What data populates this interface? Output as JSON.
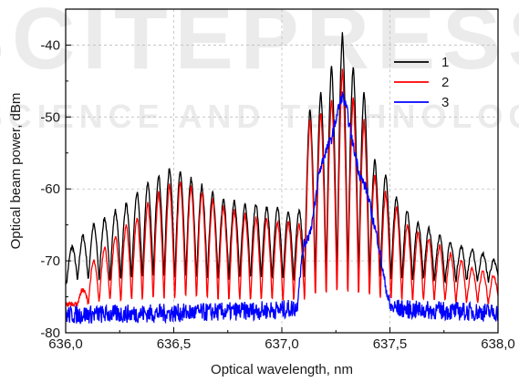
{
  "chart_data": {
    "type": "line",
    "xlabel": "Optical wavelength, nm",
    "ylabel": "Optical beam power, dBm",
    "xlim": [
      636.0,
      638.0
    ],
    "ylim": [
      -80,
      -35
    ],
    "xticks": [
      636.0,
      636.5,
      637.0,
      637.5,
      638.0
    ],
    "xtick_labels": [
      "636,0",
      "636,5",
      "637,0",
      "637,5",
      "638,0"
    ],
    "yticks": [
      -80,
      -70,
      -60,
      -50,
      -40
    ],
    "ytick_labels": [
      "-80",
      "-70",
      "-60",
      "-50",
      "-40"
    ],
    "grid": "dashed",
    "legend_position": "top-right",
    "fringe_period_nm": 0.05,
    "series": [
      {
        "name": "1",
        "color": "#000000",
        "peaks": [
          [
            636.03,
            -68
          ],
          [
            636.08,
            -66.5
          ],
          [
            636.13,
            -65
          ],
          [
            636.18,
            -64
          ],
          [
            636.23,
            -63
          ],
          [
            636.28,
            -62
          ],
          [
            636.33,
            -60.5
          ],
          [
            636.38,
            -59
          ],
          [
            636.43,
            -58
          ],
          [
            636.48,
            -57
          ],
          [
            636.53,
            -57.5
          ],
          [
            636.58,
            -58.5
          ],
          [
            636.63,
            -59.5
          ],
          [
            636.68,
            -60.5
          ],
          [
            636.73,
            -61.5
          ],
          [
            636.78,
            -61.5
          ],
          [
            636.83,
            -62
          ],
          [
            636.88,
            -62
          ],
          [
            636.93,
            -62.5
          ],
          [
            636.98,
            -62.5
          ],
          [
            637.03,
            -63
          ],
          [
            637.08,
            -63
          ],
          [
            637.13,
            -49
          ],
          [
            637.18,
            -46.5
          ],
          [
            637.23,
            -43
          ],
          [
            637.28,
            -38.5
          ],
          [
            637.33,
            -43
          ],
          [
            637.38,
            -46.5
          ],
          [
            637.43,
            -56
          ],
          [
            637.48,
            -58
          ],
          [
            637.53,
            -61
          ],
          [
            637.58,
            -63
          ],
          [
            637.63,
            -64.5
          ],
          [
            637.68,
            -65.5
          ],
          [
            637.73,
            -66.5
          ],
          [
            637.78,
            -67.5
          ],
          [
            637.83,
            -68
          ],
          [
            637.88,
            -68.5
          ],
          [
            637.93,
            -69
          ],
          [
            637.98,
            -70
          ]
        ],
        "floor": -73
      },
      {
        "name": "2",
        "color": "#ff0000",
        "peaks": [
          [
            636.08,
            -74
          ],
          [
            636.13,
            -70
          ],
          [
            636.18,
            -68
          ],
          [
            636.23,
            -66.5
          ],
          [
            636.28,
            -65
          ],
          [
            636.33,
            -64
          ],
          [
            636.38,
            -62
          ],
          [
            636.43,
            -60.5
          ],
          [
            636.48,
            -59.5
          ],
          [
            636.53,
            -59
          ],
          [
            636.58,
            -59.5
          ],
          [
            636.63,
            -60.5
          ],
          [
            636.68,
            -61.5
          ],
          [
            636.73,
            -62.5
          ],
          [
            636.78,
            -63
          ],
          [
            636.83,
            -63.5
          ],
          [
            636.88,
            -64
          ],
          [
            636.93,
            -64
          ],
          [
            636.98,
            -64.5
          ],
          [
            637.03,
            -64.5
          ],
          [
            637.08,
            -65
          ],
          [
            637.13,
            -50.5
          ],
          [
            637.18,
            -49.5
          ],
          [
            637.23,
            -47.5
          ],
          [
            637.28,
            -43.5
          ],
          [
            637.33,
            -47.5
          ],
          [
            637.38,
            -50.5
          ],
          [
            637.43,
            -58
          ],
          [
            637.48,
            -60.5
          ],
          [
            637.53,
            -62.5
          ],
          [
            637.58,
            -65
          ],
          [
            637.63,
            -66
          ],
          [
            637.68,
            -67
          ],
          [
            637.73,
            -68
          ],
          [
            637.78,
            -69
          ],
          [
            637.83,
            -70
          ],
          [
            637.88,
            -71
          ],
          [
            637.93,
            -71.5
          ],
          [
            637.98,
            -72
          ]
        ],
        "floor": -76
      },
      {
        "name": "3",
        "color": "#0000ff",
        "noise_floor": -77.5,
        "points": [
          [
            636.0,
            -77.5
          ],
          [
            636.2,
            -77.4
          ],
          [
            636.4,
            -77.3
          ],
          [
            636.6,
            -77.2
          ],
          [
            636.8,
            -77.0
          ],
          [
            637.0,
            -76.8
          ],
          [
            637.07,
            -76.5
          ],
          [
            637.08,
            -73
          ],
          [
            637.1,
            -68
          ],
          [
            637.13,
            -66
          ],
          [
            637.15,
            -63
          ],
          [
            637.17,
            -58
          ],
          [
            637.2,
            -55
          ],
          [
            637.23,
            -53
          ],
          [
            637.26,
            -49
          ],
          [
            637.28,
            -47
          ],
          [
            637.3,
            -49
          ],
          [
            637.33,
            -54
          ],
          [
            637.36,
            -58
          ],
          [
            637.39,
            -60
          ],
          [
            637.42,
            -64
          ],
          [
            637.45,
            -68
          ],
          [
            637.47,
            -72
          ],
          [
            637.5,
            -76.5
          ],
          [
            637.6,
            -76.8
          ],
          [
            637.8,
            -77
          ],
          [
            638.0,
            -77.2
          ]
        ]
      }
    ]
  }
}
